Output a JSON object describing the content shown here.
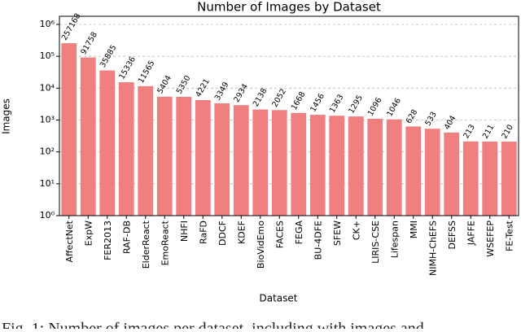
{
  "chart_data": {
    "type": "bar",
    "title": "Number of Images by Dataset",
    "x_label": "Dataset",
    "y_label": "Images",
    "categories": [
      "AffectNet",
      "ExpW",
      "FER2013",
      "RAF-DB",
      "ElderReact",
      "EmoReact",
      "NHFI",
      "RaFD",
      "DDCF",
      "KDEF",
      "BioVidEmo",
      "FACES",
      "FEGA",
      "BU-4DFE",
      "SFEW",
      "CK+",
      "LIRIS-CSE",
      "Lifespan",
      "MMI",
      "NIMH-ChEFS",
      "DEFSS",
      "JAFFE",
      "WSEFEP",
      "FE-Test"
    ],
    "values": [
      257168,
      91758,
      35885,
      15336,
      11565,
      5404,
      5350,
      4221,
      3349,
      2934,
      2138,
      2052,
      1668,
      1456,
      1363,
      1295,
      1096,
      1046,
      628,
      533,
      404,
      213,
      211,
      210
    ],
    "color": "#f08080",
    "log_scale": true,
    "grid": true,
    "ylim": [
      1,
      1800000
    ],
    "yticks": [
      {
        "value": 1,
        "label": "10⁰"
      },
      {
        "value": 10,
        "label": "10¹"
      },
      {
        "value": 100,
        "label": "10²"
      },
      {
        "value": 1000,
        "label": "10³"
      },
      {
        "value": 10000,
        "label": "10⁴"
      },
      {
        "value": 100000,
        "label": "10⁵"
      },
      {
        "value": 1000000,
        "label": "10⁶"
      }
    ],
    "caption": "Fig. 1: Number of images per dataset, including with images and"
  }
}
